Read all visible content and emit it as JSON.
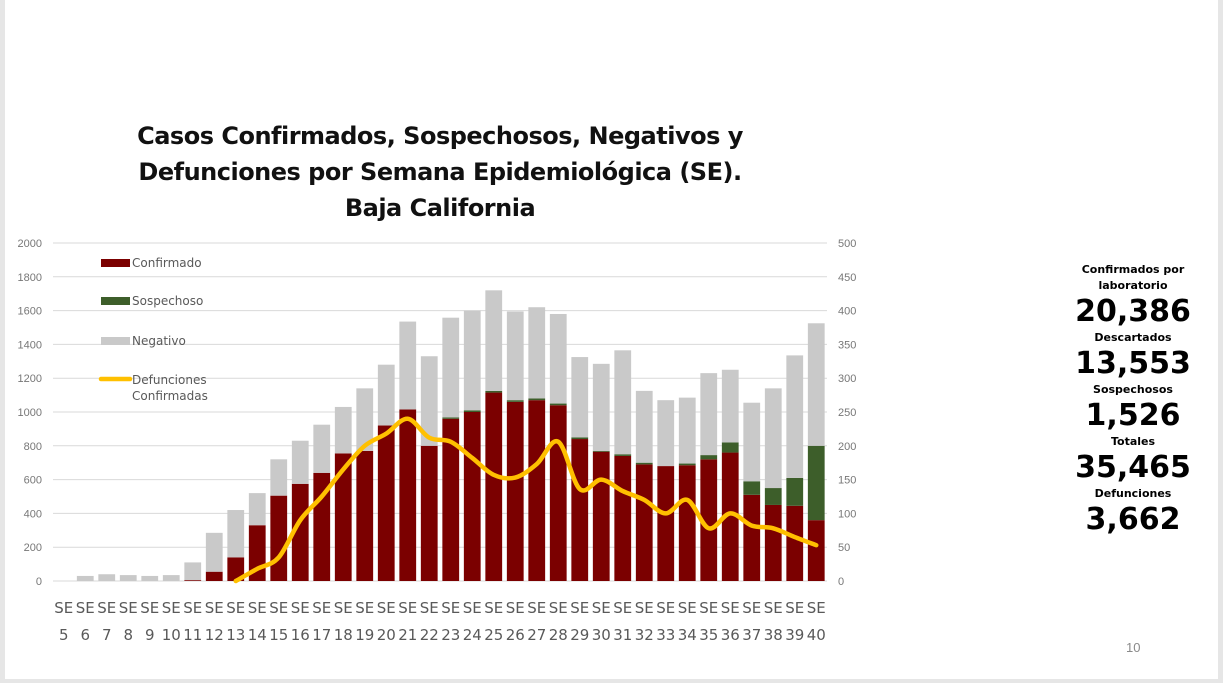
{
  "slide": {
    "page_number": "10"
  },
  "stats": [
    {
      "label": "Confirmados por laboratorio",
      "value": "20,386"
    },
    {
      "label": "Descartados",
      "value": "13,553"
    },
    {
      "label": "Sospechosos",
      "value": "1,526"
    },
    {
      "label": "Totales",
      "value": "35,465"
    },
    {
      "label": "Defunciones",
      "value": "3,662"
    }
  ],
  "chart_data": {
    "type": "bar",
    "stacked": true,
    "title": "Casos Confirmados, Sospechosos, Negativos y Defunciones por Semana Epidemiológica (SE). Baja California",
    "title_lines": [
      "Casos Confirmados, Sospechosos, Negativos y",
      "Defunciones por Semana Epidemiológica (SE).",
      "Baja California"
    ],
    "category_prefix": "SE",
    "weeks": [
      "5",
      "6",
      "7",
      "8",
      "9",
      "10",
      "11",
      "12",
      "13",
      "14",
      "15",
      "16",
      "17",
      "18",
      "19",
      "20",
      "21",
      "22",
      "23",
      "24",
      "25",
      "26",
      "27",
      "28",
      "29",
      "30",
      "31",
      "32",
      "33",
      "34",
      "35",
      "36",
      "37",
      "38",
      "39",
      "40"
    ],
    "ylim_left": [
      0,
      2000
    ],
    "yticks_left": [
      0,
      200,
      400,
      600,
      800,
      1000,
      1200,
      1400,
      1600,
      1800,
      2000
    ],
    "ylim_right": [
      0,
      500
    ],
    "yticks_right": [
      0,
      50,
      100,
      150,
      200,
      250,
      300,
      350,
      400,
      450,
      500
    ],
    "grid": true,
    "legend_position": "top-left",
    "colors": {
      "confirmado": "#7b0000",
      "sospechoso": "#3d5e2a",
      "negativo": "#c9c9c9",
      "defunciones": "#ffc000"
    },
    "series": [
      {
        "name": "Confirmado",
        "axis": "left",
        "values": [
          0,
          0,
          0,
          0,
          0,
          0,
          5,
          55,
          140,
          330,
          505,
          575,
          640,
          755,
          770,
          920,
          1015,
          800,
          960,
          1000,
          1115,
          1060,
          1070,
          1040,
          840,
          765,
          740,
          690,
          680,
          685,
          720,
          760,
          510,
          450,
          445,
          360
        ]
      },
      {
        "name": "Sospechoso",
        "axis": "left",
        "values": [
          0,
          0,
          0,
          0,
          0,
          0,
          0,
          0,
          0,
          0,
          0,
          0,
          0,
          0,
          0,
          0,
          0,
          0,
          8,
          10,
          10,
          10,
          10,
          10,
          10,
          5,
          10,
          10,
          0,
          10,
          25,
          60,
          80,
          100,
          165,
          440
        ]
      },
      {
        "name": "Negativo",
        "axis": "left",
        "values": [
          0,
          30,
          40,
          35,
          30,
          35,
          105,
          230,
          280,
          190,
          215,
          255,
          285,
          275,
          370,
          360,
          520,
          530,
          590,
          590,
          595,
          525,
          540,
          530,
          475,
          515,
          615,
          425,
          390,
          390,
          485,
          430,
          465,
          590,
          725,
          725
        ]
      },
      {
        "name": "Defunciones Confirmadas",
        "axis": "right",
        "type": "line",
        "values": [
          null,
          null,
          null,
          null,
          null,
          null,
          null,
          null,
          0,
          18,
          35,
          90,
          125,
          165,
          200,
          218,
          240,
          212,
          206,
          182,
          157,
          153,
          173,
          206,
          136,
          150,
          133,
          120,
          100,
          120,
          78,
          100,
          82,
          78,
          65,
          53
        ]
      }
    ]
  }
}
